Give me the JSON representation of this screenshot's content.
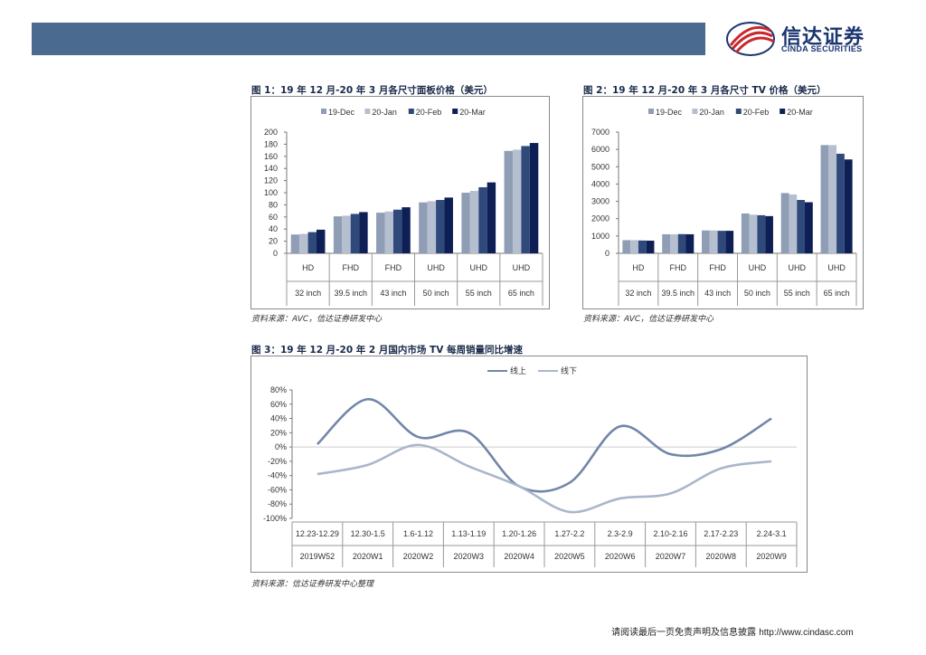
{
  "header": {
    "logo_cn": "信达证券",
    "logo_en": "CINDA SECURITIES"
  },
  "colors": {
    "banner": "#4a6a8f",
    "series1": "#8f9db5",
    "series2": "#b6bfd0",
    "series3": "#2f4a7a",
    "series4": "#0d1f55",
    "line_online": "#7286a8",
    "line_offline": "#a9b6cb"
  },
  "figures": [
    {
      "title": "图 1：19 年 12 月-20 年 3 月各尺寸面板价格（美元）",
      "source": "资料来源：AVC，信达证券研发中心"
    },
    {
      "title": "图 2：19 年 12 月-20 年 3 月各尺寸 TV 价格（美元）",
      "source": "资料来源：AVC，信达证券研发中心"
    },
    {
      "title": "图 3：19 年 12 月-20 年 2 月国内市场 TV 每周销量同比增速",
      "source": "资料来源：信达证券研发中心整理"
    }
  ],
  "chart_data": [
    {
      "type": "bar",
      "categories": [
        "HD",
        "FHD",
        "FHD",
        "UHD",
        "UHD",
        "UHD"
      ],
      "sub_categories": [
        "32 inch",
        "39.5 inch",
        "43 inch",
        "50 inch",
        "55 inch",
        "65 inch"
      ],
      "series": [
        {
          "name": "19-Dec",
          "values": [
            31,
            61,
            67,
            84,
            100,
            169
          ]
        },
        {
          "name": "20-Jan",
          "values": [
            32,
            62,
            69,
            86,
            103,
            171
          ]
        },
        {
          "name": "20-Feb",
          "values": [
            35,
            65,
            72,
            88,
            109,
            177
          ]
        },
        {
          "name": "20-Mar",
          "values": [
            39,
            68,
            76,
            92,
            117,
            182
          ]
        }
      ],
      "ylim": [
        0,
        200
      ],
      "yticks": [
        0,
        20,
        40,
        60,
        80,
        100,
        120,
        140,
        160,
        180,
        200
      ],
      "legend": "top"
    },
    {
      "type": "bar",
      "categories": [
        "HD",
        "FHD",
        "FHD",
        "UHD",
        "UHD",
        "UHD"
      ],
      "sub_categories": [
        "32 inch",
        "39.5 inch",
        "43 inch",
        "50 inch",
        "55 inch",
        "65 inch"
      ],
      "series": [
        {
          "name": "19-Dec",
          "values": [
            760,
            1100,
            1320,
            2300,
            3480,
            6250
          ]
        },
        {
          "name": "20-Jan",
          "values": [
            760,
            1100,
            1320,
            2230,
            3400,
            6250
          ]
        },
        {
          "name": "20-Feb",
          "values": [
            740,
            1110,
            1300,
            2200,
            3080,
            5750
          ]
        },
        {
          "name": "20-Mar",
          "values": [
            730,
            1100,
            1300,
            2150,
            2950,
            5420
          ]
        }
      ],
      "ylim": [
        0,
        7000
      ],
      "yticks": [
        0,
        1000,
        2000,
        3000,
        4000,
        5000,
        6000,
        7000
      ],
      "legend": "top"
    },
    {
      "type": "line",
      "x": [
        "12.23-12.29",
        "12.30-1.5",
        "1.6-1.12",
        "1.13-1.19",
        "1.20-1.26",
        "1.27-2.2",
        "2.3-2.9",
        "2.10-2.16",
        "2.17-2.23",
        "2.24-3.1"
      ],
      "x_sub": [
        "2019W52",
        "2020W1",
        "2020W2",
        "2020W3",
        "2020W4",
        "2020W5",
        "2020W6",
        "2020W7",
        "2020W8",
        "2020W9"
      ],
      "series": [
        {
          "name": "线上",
          "values": [
            4,
            67,
            14,
            20,
            -55,
            -50,
            29,
            -10,
            -3,
            40
          ]
        },
        {
          "name": "线下",
          "values": [
            -38,
            -25,
            3,
            -27,
            -55,
            -91,
            -72,
            -65,
            -30,
            -20
          ]
        }
      ],
      "ylim": [
        -100,
        80
      ],
      "yticks": [
        "80%",
        "60%",
        "40%",
        "20%",
        "0%",
        "-20%",
        "-40%",
        "-60%",
        "-80%",
        "-100%"
      ],
      "legend": "top"
    }
  ],
  "footer": {
    "text": "请阅读最后一页免责声明及信息披露",
    "url": "http://www.cindasc.com"
  }
}
